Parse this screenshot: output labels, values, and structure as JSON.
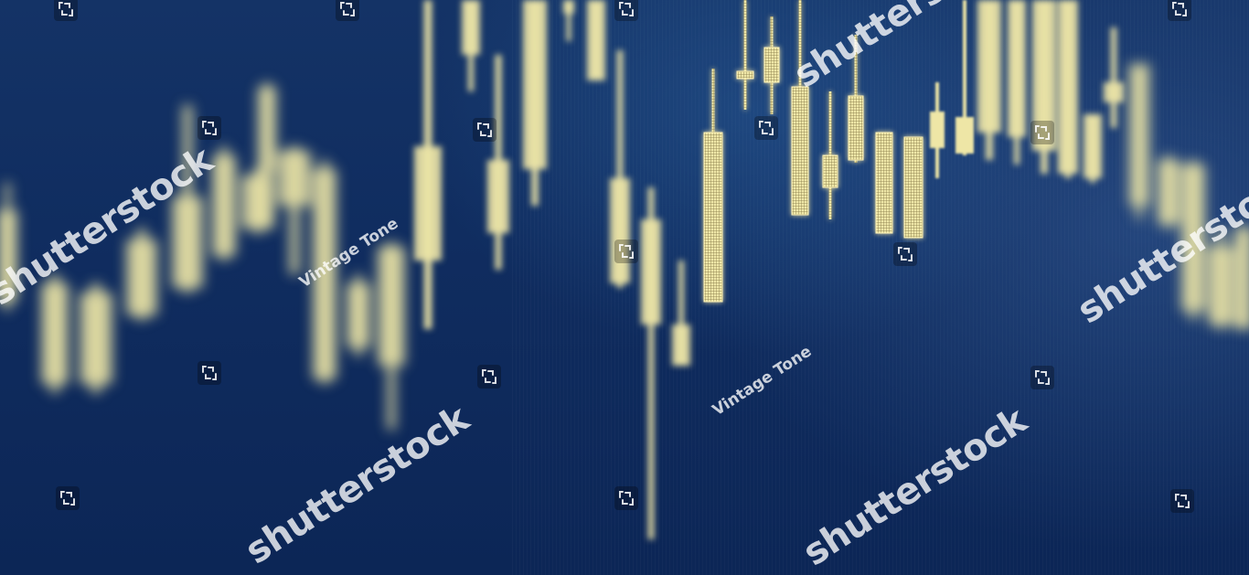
{
  "image": {
    "subject": "candlestick",
    "colors": {
      "background": "#0f2a5c",
      "candle": "#eee6a6",
      "candle_glow": "#fff3b8",
      "watermark": "#ffffff"
    }
  },
  "watermarks": {
    "brand": "shutterstock",
    "tagline": "Vintage Tone",
    "icon": "shutterstock-logo-icon"
  }
}
